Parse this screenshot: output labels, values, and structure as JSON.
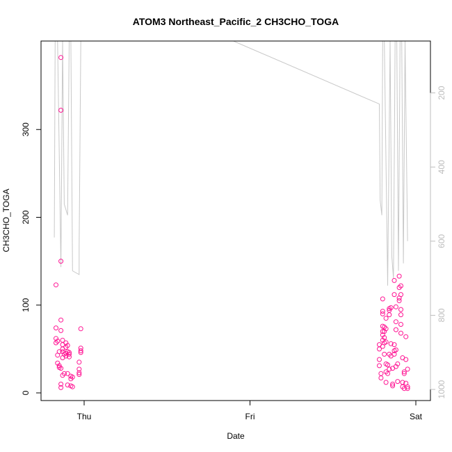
{
  "chart_data": {
    "type": "scatter",
    "title": "ATOM3 Northeast_Pacific_2 CH3CHO_TOGA",
    "xlabel": "Date",
    "ylabel": "CH3CHO_TOGA",
    "x_ticks": [
      "Thu",
      "Fri",
      "Sat"
    ],
    "y_ticks": [
      0,
      100,
      200,
      300
    ],
    "ylim": [
      0,
      392
    ],
    "right_axis": {
      "ticks": [
        200,
        400,
        600,
        800,
        1000
      ],
      "reversed": true,
      "range": [
        1030,
        60
      ]
    },
    "grid": false,
    "colors": {
      "points": "#ff1493",
      "line": "#c8c8c8"
    },
    "series": [
      {
        "values": [
          {
            "x": -0.17,
            "y": 123
          },
          {
            "x": -0.17,
            "y": 74
          },
          {
            "x": -0.17,
            "y": 62
          },
          {
            "x": -0.17,
            "y": 57
          },
          {
            "x": -0.16,
            "y": 59
          },
          {
            "x": -0.16,
            "y": 43
          },
          {
            "x": -0.16,
            "y": 34
          },
          {
            "x": -0.15,
            "y": 31
          },
          {
            "x": -0.15,
            "y": 29
          },
          {
            "x": -0.15,
            "y": 47
          },
          {
            "x": -0.14,
            "y": 28
          },
          {
            "x": -0.14,
            "y": 10
          },
          {
            "x": -0.14,
            "y": 6
          },
          {
            "x": -0.14,
            "y": 382
          },
          {
            "x": -0.14,
            "y": 322
          },
          {
            "x": -0.14,
            "y": 150
          },
          {
            "x": -0.14,
            "y": 83
          },
          {
            "x": -0.14,
            "y": 71
          },
          {
            "x": -0.13,
            "y": 60
          },
          {
            "x": -0.13,
            "y": 55
          },
          {
            "x": -0.13,
            "y": 50
          },
          {
            "x": -0.13,
            "y": 47
          },
          {
            "x": -0.13,
            "y": 40
          },
          {
            "x": -0.13,
            "y": 20
          },
          {
            "x": -0.12,
            "y": 22
          },
          {
            "x": -0.12,
            "y": 44
          },
          {
            "x": -0.11,
            "y": 57
          },
          {
            "x": -0.11,
            "y": 52
          },
          {
            "x": -0.11,
            "y": 45
          },
          {
            "x": -0.11,
            "y": 42
          },
          {
            "x": -0.1,
            "y": 9
          },
          {
            "x": -0.1,
            "y": 22
          },
          {
            "x": -0.1,
            "y": 54
          },
          {
            "x": -0.1,
            "y": 47
          },
          {
            "x": -0.09,
            "y": 46
          },
          {
            "x": -0.09,
            "y": 44
          },
          {
            "x": -0.09,
            "y": 41
          },
          {
            "x": -0.08,
            "y": 19
          },
          {
            "x": -0.08,
            "y": 16
          },
          {
            "x": -0.08,
            "y": 8
          },
          {
            "x": -0.07,
            "y": 18
          },
          {
            "x": -0.07,
            "y": 7
          },
          {
            "x": -0.03,
            "y": 35
          },
          {
            "x": -0.03,
            "y": 27
          },
          {
            "x": -0.03,
            "y": 23
          },
          {
            "x": -0.03,
            "y": 21
          },
          {
            "x": -0.02,
            "y": 73
          },
          {
            "x": -0.02,
            "y": 51
          },
          {
            "x": -0.02,
            "y": 48
          },
          {
            "x": -0.02,
            "y": 46
          },
          {
            "x": 1.78,
            "y": 55
          },
          {
            "x": 1.78,
            "y": 50
          },
          {
            "x": 1.78,
            "y": 38
          },
          {
            "x": 1.78,
            "y": 31
          },
          {
            "x": 1.79,
            "y": 22
          },
          {
            "x": 1.79,
            "y": 17
          },
          {
            "x": 1.8,
            "y": 107
          },
          {
            "x": 1.8,
            "y": 93
          },
          {
            "x": 1.8,
            "y": 90
          },
          {
            "x": 1.8,
            "y": 76
          },
          {
            "x": 1.8,
            "y": 70
          },
          {
            "x": 1.8,
            "y": 66
          },
          {
            "x": 1.8,
            "y": 60
          },
          {
            "x": 1.8,
            "y": 53
          },
          {
            "x": 1.81,
            "y": 75
          },
          {
            "x": 1.81,
            "y": 70
          },
          {
            "x": 1.81,
            "y": 63
          },
          {
            "x": 1.81,
            "y": 57
          },
          {
            "x": 1.81,
            "y": 44
          },
          {
            "x": 1.82,
            "y": 85
          },
          {
            "x": 1.82,
            "y": 73
          },
          {
            "x": 1.82,
            "y": 58
          },
          {
            "x": 1.82,
            "y": 33
          },
          {
            "x": 1.82,
            "y": 24
          },
          {
            "x": 1.82,
            "y": 12
          },
          {
            "x": 1.83,
            "y": 32
          },
          {
            "x": 1.83,
            "y": 22
          },
          {
            "x": 1.84,
            "y": 96
          },
          {
            "x": 1.84,
            "y": 94
          },
          {
            "x": 1.84,
            "y": 89
          },
          {
            "x": 1.84,
            "y": 44
          },
          {
            "x": 1.84,
            "y": 27
          },
          {
            "x": 1.85,
            "y": 97
          },
          {
            "x": 1.85,
            "y": 56
          },
          {
            "x": 1.85,
            "y": 42
          },
          {
            "x": 1.86,
            "y": 28
          },
          {
            "x": 1.86,
            "y": 10
          },
          {
            "x": 1.86,
            "y": 8
          },
          {
            "x": 1.87,
            "y": 128
          },
          {
            "x": 1.87,
            "y": 112
          },
          {
            "x": 1.87,
            "y": 55
          },
          {
            "x": 1.87,
            "y": 48
          },
          {
            "x": 1.87,
            "y": 44
          },
          {
            "x": 1.88,
            "y": 98
          },
          {
            "x": 1.88,
            "y": 81
          },
          {
            "x": 1.88,
            "y": 72
          },
          {
            "x": 1.88,
            "y": 49
          },
          {
            "x": 1.88,
            "y": 30
          },
          {
            "x": 1.89,
            "y": 13
          },
          {
            "x": 1.89,
            "y": 33
          },
          {
            "x": 1.9,
            "y": 133
          },
          {
            "x": 1.9,
            "y": 120
          },
          {
            "x": 1.9,
            "y": 108
          },
          {
            "x": 1.9,
            "y": 105
          },
          {
            "x": 1.91,
            "y": 122
          },
          {
            "x": 1.91,
            "y": 112
          },
          {
            "x": 1.91,
            "y": 95
          },
          {
            "x": 1.91,
            "y": 89
          },
          {
            "x": 1.91,
            "y": 78
          },
          {
            "x": 1.91,
            "y": 68
          },
          {
            "x": 1.92,
            "y": 40
          },
          {
            "x": 1.92,
            "y": 12
          },
          {
            "x": 1.92,
            "y": 7
          },
          {
            "x": 1.93,
            "y": 5
          },
          {
            "x": 1.93,
            "y": 22
          },
          {
            "x": 1.93,
            "y": 24
          },
          {
            "x": 1.94,
            "y": 64
          },
          {
            "x": 1.94,
            "y": 38
          },
          {
            "x": 1.94,
            "y": 11
          },
          {
            "x": 1.95,
            "y": 7
          },
          {
            "x": 1.95,
            "y": 5
          },
          {
            "x": 1.95,
            "y": 27
          }
        ]
      },
      {
        "right_axis": true,
        "values": [
          {
            "x": -0.18,
            "y": 590
          },
          {
            "x": -0.175,
            "y": 60
          },
          {
            "x": -0.16,
            "y": 60
          },
          {
            "x": -0.14,
            "y": 670
          },
          {
            "x": -0.13,
            "y": 60
          },
          {
            "x": -0.12,
            "y": 500
          },
          {
            "x": -0.1,
            "y": 530
          },
          {
            "x": -0.09,
            "y": 60
          },
          {
            "x": -0.08,
            "y": 60
          },
          {
            "x": -0.07,
            "y": 680
          },
          {
            "x": -0.03,
            "y": 690
          },
          {
            "x": -0.03,
            "y": 620
          },
          {
            "x": -0.02,
            "y": 60
          },
          {
            "x": 0.9,
            "y": 60
          },
          {
            "x": 1.78,
            "y": 230
          },
          {
            "x": 1.785,
            "y": 490
          },
          {
            "x": 1.795,
            "y": 530
          },
          {
            "x": 1.8,
            "y": 60
          },
          {
            "x": 1.81,
            "y": 60
          },
          {
            "x": 1.83,
            "y": 720
          },
          {
            "x": 1.845,
            "y": 60
          },
          {
            "x": 1.855,
            "y": 640
          },
          {
            "x": 1.865,
            "y": 700
          },
          {
            "x": 1.875,
            "y": 60
          },
          {
            "x": 1.885,
            "y": 60
          },
          {
            "x": 1.895,
            "y": 680
          },
          {
            "x": 1.905,
            "y": 60
          },
          {
            "x": 1.915,
            "y": 60
          },
          {
            "x": 1.925,
            "y": 660
          },
          {
            "x": 1.935,
            "y": 60
          },
          {
            "x": 1.95,
            "y": 600
          }
        ]
      }
    ]
  }
}
